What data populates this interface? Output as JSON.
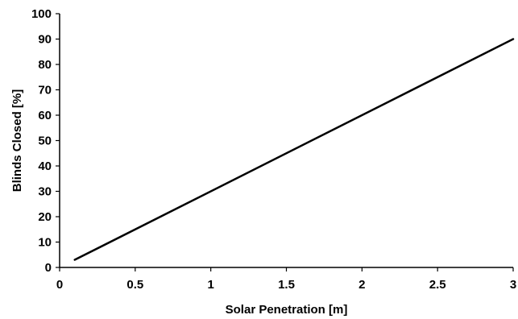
{
  "chart_data": {
    "type": "line",
    "title": "",
    "xlabel": "Solar Penetration [m]",
    "ylabel": "Blinds Closed [%]",
    "xlim": [
      0,
      3
    ],
    "ylim": [
      0,
      100
    ],
    "x_ticks": [
      0,
      0.5,
      1,
      1.5,
      2,
      2.5,
      3
    ],
    "x_tick_labels": [
      "0",
      "0.5",
      "1",
      "1.5",
      "2",
      "2.5",
      "3"
    ],
    "y_ticks": [
      0,
      10,
      20,
      30,
      40,
      50,
      60,
      70,
      80,
      90,
      100
    ],
    "y_tick_labels": [
      "0",
      "10",
      "20",
      "30",
      "40",
      "50",
      "60",
      "70",
      "80",
      "90",
      "100"
    ],
    "grid": false,
    "legend": "none",
    "series": [
      {
        "color": "#000000",
        "x": [
          0.1,
          3
        ],
        "y": [
          3,
          90
        ]
      }
    ]
  }
}
